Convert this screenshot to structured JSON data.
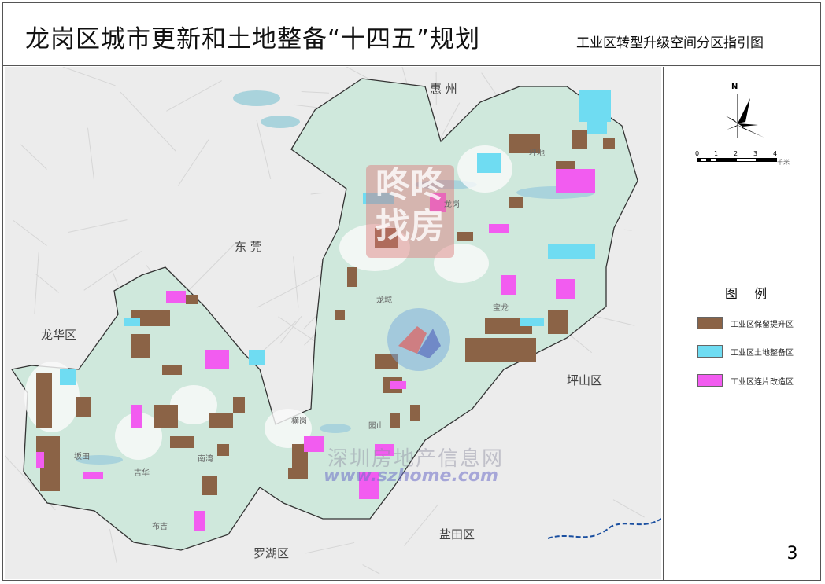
{
  "header": {
    "title": "龙岗区城市更新和土地整备“十四五”规划",
    "subtitle": "工业区转型升级空间分区指引图"
  },
  "map": {
    "region_labels": {
      "huizhou": "惠 州",
      "dongguan": "东 莞",
      "longhua": "龙华区",
      "pingshan": "坪山区",
      "yantian": "盐田区",
      "luohu": "罗湖区"
    },
    "street_labels": {
      "pingdi": "坪地",
      "longgang": "龙岗",
      "longcheng": "龙城",
      "baolong": "宝龙",
      "henggang": "横岗",
      "yuanshan": "园山",
      "bantian": "坂田",
      "jihua": "吉华",
      "buji": "布吉",
      "nanwan": "南湾"
    },
    "watermarks": {
      "dongdong": "咚咚找房",
      "szhome_cn": "深圳房地产信息网",
      "szhome_url": "www.szhome.com"
    },
    "colors": {
      "district_fill": "#cfe8dc",
      "outside_fill": "#ececec",
      "retain_upgrade": "#8b6346",
      "land_prep": "#6fdcf2",
      "contiguous_renewal": "#f25cf0",
      "water": "#a9d3dc"
    }
  },
  "compass": {
    "north_label": "N",
    "scale_ticks": [
      "0",
      "1",
      "2",
      "3",
      "4"
    ],
    "scale_unit": "千米"
  },
  "legend": {
    "title": "图 例",
    "items": [
      {
        "label": "工业区保留提升区",
        "color": "#8b6346"
      },
      {
        "label": "工业区土地整备区",
        "color": "#6fdcf2"
      },
      {
        "label": "工业区连片改造区",
        "color": "#f25cf0"
      }
    ]
  },
  "page_number": "3"
}
